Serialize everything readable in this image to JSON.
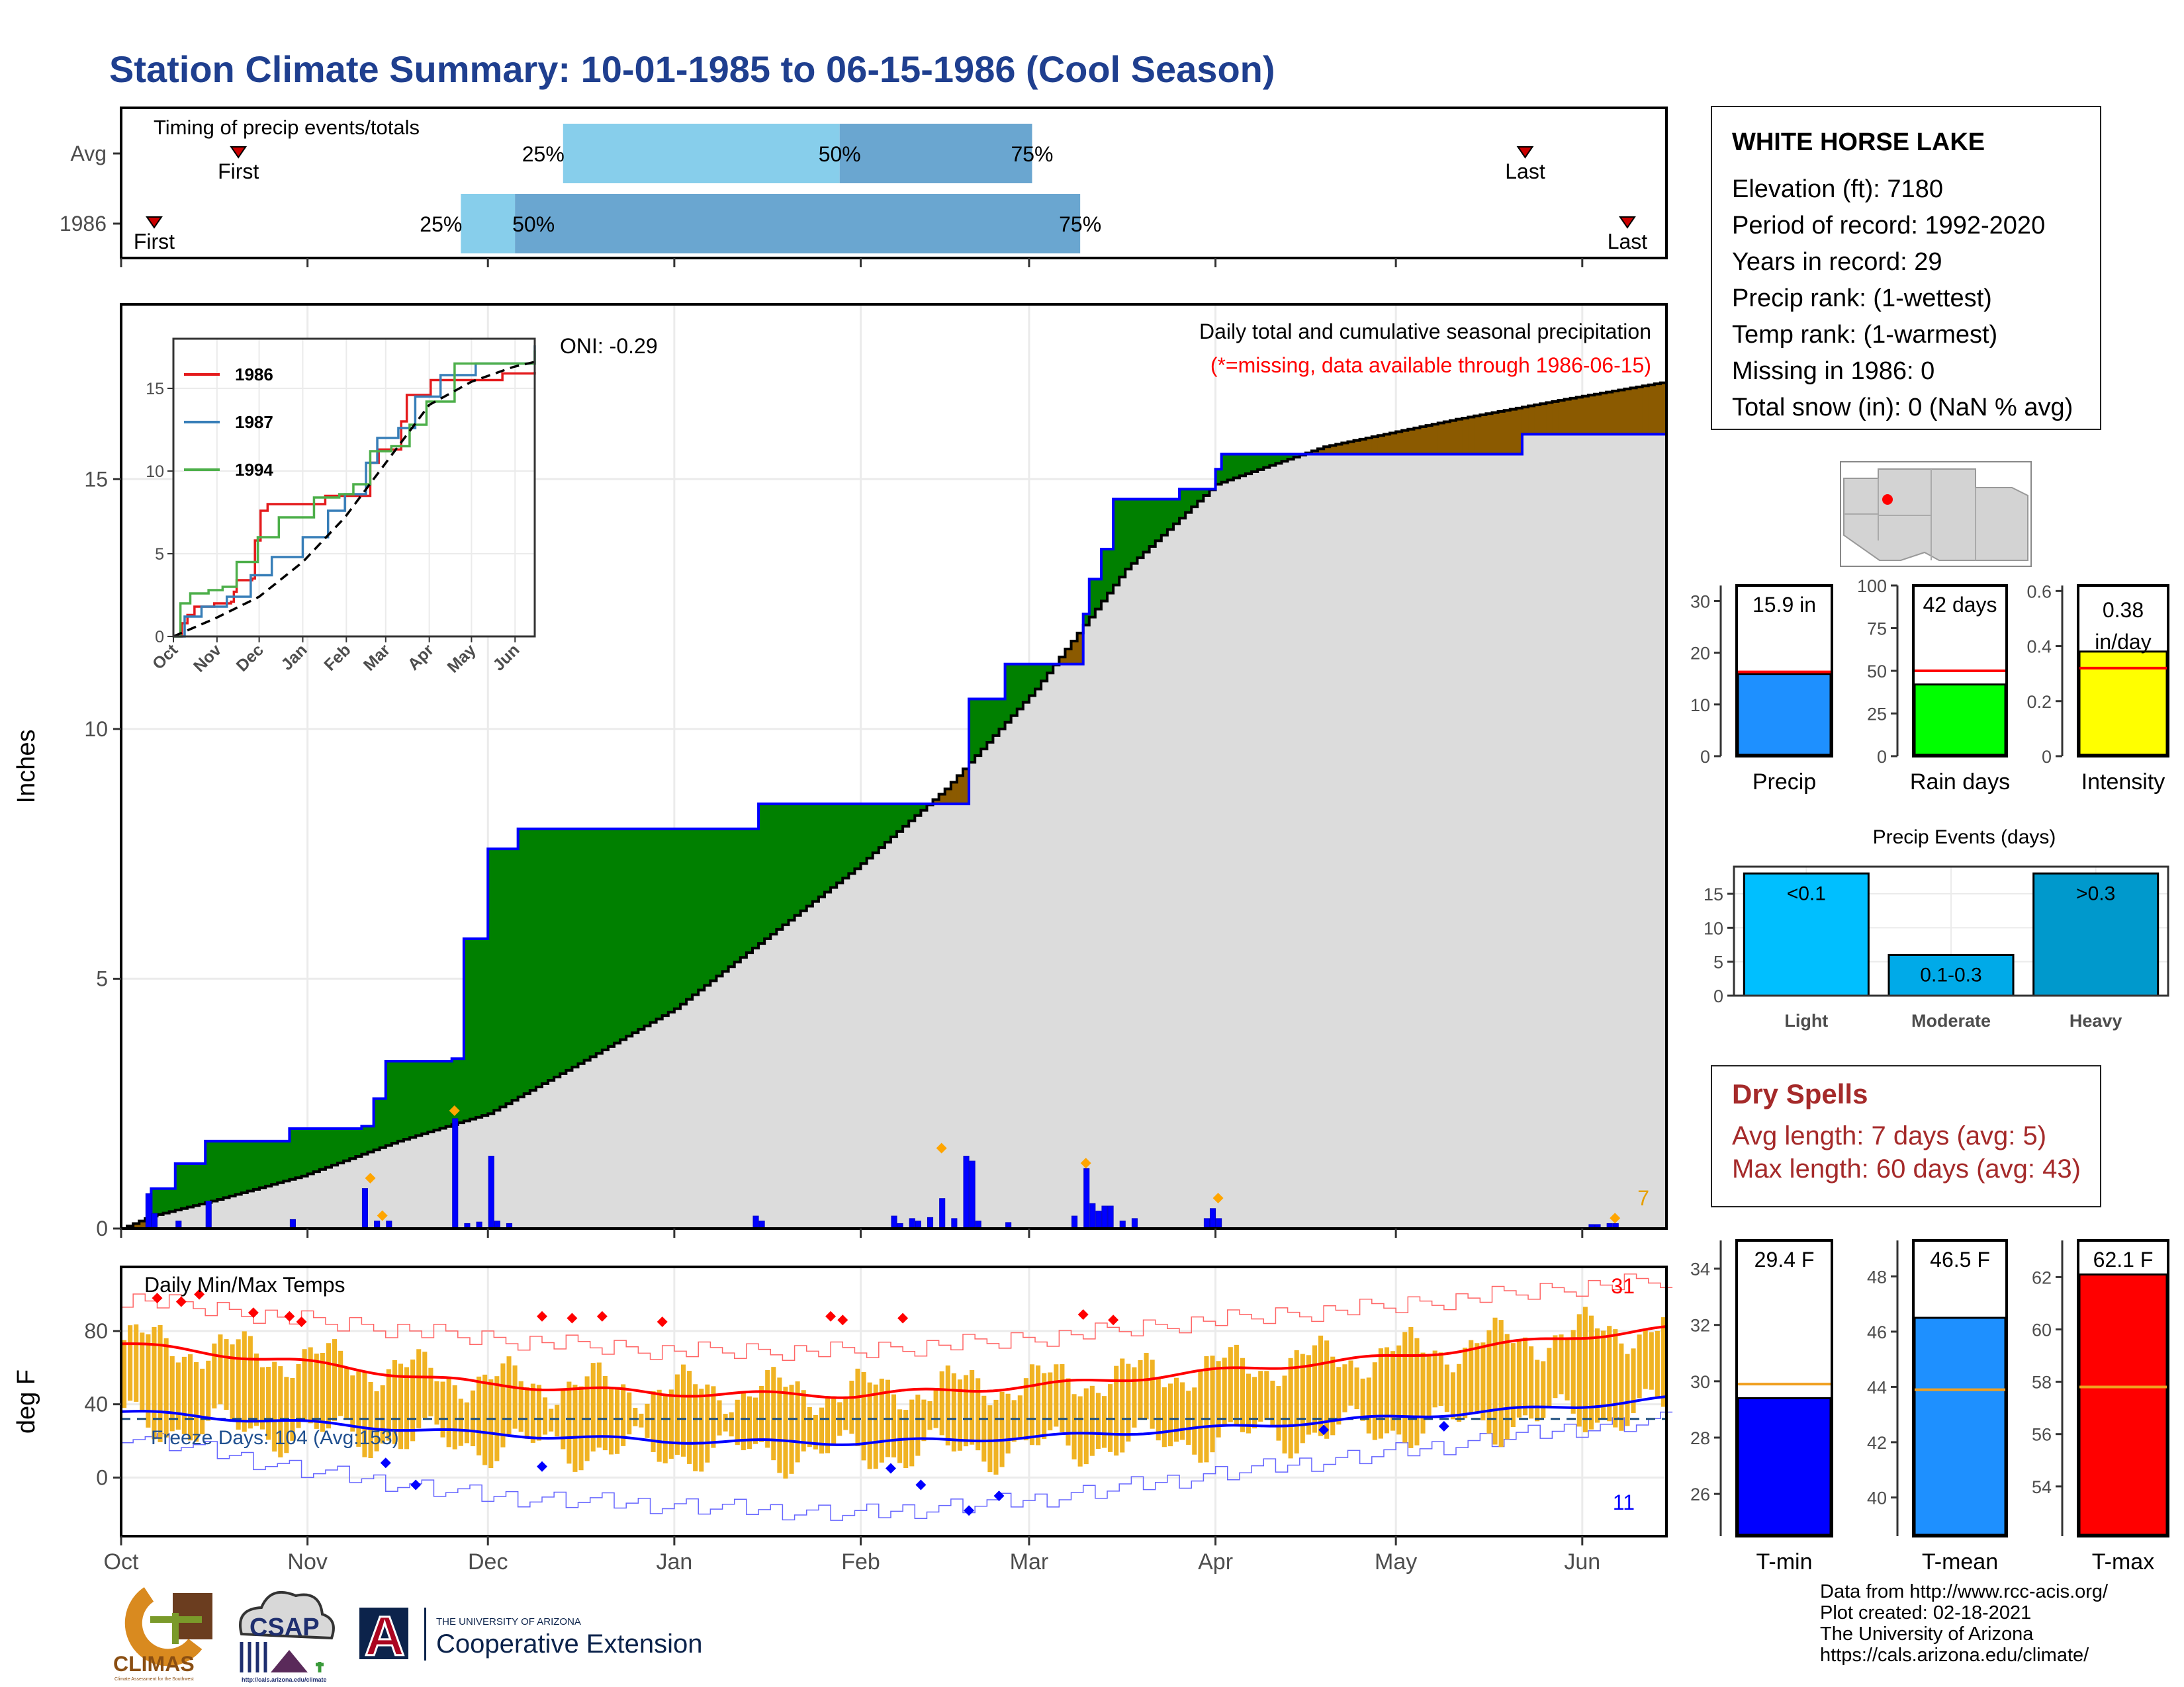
{
  "title": "Station Climate Summary: 10-01-1985 to 06-15-1986 (Cool Season)",
  "station": {
    "name": "WHITE HORSE LAKE",
    "lines": [
      "Elevation (ft): 7180",
      "Period of record: 1992-2020",
      "Years in record: 29",
      "Precip rank:  (1-wettest)",
      "Temp rank:  (1-warmest)",
      "Missing in 1986: 0",
      "Total snow (in): 0 (NaN % avg)"
    ]
  },
  "dry_spells": {
    "title": "Dry Spells",
    "avg_length": "Avg length: 7 days (avg: 5)",
    "max_length": "Max length: 60 days (avg: 43)"
  },
  "footer": {
    "lines": [
      "Data from http://www.rcc-acis.org/",
      "Plot created: 02-18-2021",
      "The University of Arizona",
      "https://cals.arizona.edu/climate/"
    ]
  },
  "logos": {
    "climas": "CLIMAS",
    "climas_sub": "Climate Assessment for the Southwest",
    "csap": "CSAP",
    "csap_url": "http://cals.arizona.edu/climate",
    "ua_letter": "A",
    "ua_small": "THE UNIVERSITY OF ARIZONA",
    "ua_ext": "Cooperative Extension"
  },
  "chart_data": [
    {
      "id": "timing",
      "type": "bar",
      "title": "Timing of precip events/totals",
      "rows": [
        {
          "label": "Avg",
          "p25": "Dec 13",
          "p50": "Jan 28",
          "p75": "Mar 1",
          "first": "Oct 20",
          "last": "May 22"
        },
        {
          "label": "1986",
          "p25": "Nov 26",
          "p50": "Dec 5",
          "p75": "Mar 9",
          "first": "Oct 6",
          "last": "Jun 8"
        }
      ],
      "markers": {
        "first": "First",
        "last": "Last"
      },
      "pct_labels": [
        "25%",
        "50%",
        "75%"
      ]
    },
    {
      "id": "precip",
      "type": "area",
      "title": "Daily total and cumulative seasonal precipitation",
      "subtitle": "(*=missing, data available through 1986-06-15)",
      "ylabel": "Inches",
      "ylim": [
        0,
        18.5
      ],
      "yticks": [
        0,
        5,
        10,
        15
      ],
      "xticks": [
        "Oct",
        "Nov",
        "Dec",
        "Jan",
        "Feb",
        "Mar",
        "Apr",
        "May",
        "Jun"
      ],
      "oni": "ONI: -0.29",
      "corner_value": "7",
      "actual_cumulative": [
        [
          0,
          0
        ],
        [
          5,
          0.8
        ],
        [
          9,
          1.3
        ],
        [
          14,
          1.75
        ],
        [
          28,
          2.0
        ],
        [
          40,
          2.05
        ],
        [
          42,
          2.6
        ],
        [
          44,
          3.35
        ],
        [
          55,
          3.4
        ],
        [
          57,
          5.8
        ],
        [
          61,
          7.6
        ],
        [
          66,
          8.0
        ],
        [
          105,
          8.0
        ],
        [
          106,
          8.5
        ],
        [
          118,
          8.5
        ],
        [
          129,
          8.5
        ],
        [
          141,
          10.6
        ],
        [
          147,
          11.3
        ],
        [
          158,
          11.3
        ],
        [
          160,
          12.3
        ],
        [
          161,
          13.0
        ],
        [
          163,
          13.6
        ],
        [
          165,
          14.6
        ],
        [
          176,
          14.8
        ],
        [
          182,
          15.2
        ],
        [
          183,
          15.5
        ],
        [
          229,
          15.5
        ],
        [
          233,
          15.9
        ],
        [
          257,
          15.9
        ]
      ],
      "avg_cumulative": [
        [
          0,
          0
        ],
        [
          5,
          0.25
        ],
        [
          15,
          0.55
        ],
        [
          30,
          1.05
        ],
        [
          46,
          1.75
        ],
        [
          61,
          2.3
        ],
        [
          76,
          3.3
        ],
        [
          92,
          4.4
        ],
        [
          107,
          5.8
        ],
        [
          122,
          7.2
        ],
        [
          137,
          8.8
        ],
        [
          152,
          10.8
        ],
        [
          167,
          13.2
        ],
        [
          182,
          14.9
        ],
        [
          200,
          15.65
        ],
        [
          222,
          16.2
        ],
        [
          240,
          16.6
        ],
        [
          257,
          16.95
        ]
      ],
      "daily": [
        [
          4,
          0.7
        ],
        [
          5,
          0.3
        ],
        [
          9,
          0.15
        ],
        [
          14,
          0.55
        ],
        [
          28,
          0.18
        ],
        [
          40,
          0.8
        ],
        [
          42,
          0.15
        ],
        [
          44,
          0.15
        ],
        [
          55,
          2.2
        ],
        [
          57,
          0.1
        ],
        [
          59,
          0.13
        ],
        [
          61,
          1.45
        ],
        [
          62,
          0.15
        ],
        [
          64,
          0.1
        ],
        [
          105,
          0.25
        ],
        [
          106,
          0.15
        ],
        [
          128,
          0.25
        ],
        [
          129,
          0.1
        ],
        [
          131,
          0.2
        ],
        [
          132,
          0.15
        ],
        [
          134,
          0.22
        ],
        [
          136,
          0.6
        ],
        [
          138,
          0.2
        ],
        [
          140,
          1.45
        ],
        [
          141,
          1.35
        ],
        [
          142,
          0.15
        ],
        [
          147,
          0.12
        ],
        [
          158,
          0.25
        ],
        [
          160,
          1.2
        ],
        [
          161,
          0.5
        ],
        [
          162,
          0.35
        ],
        [
          163,
          0.45
        ],
        [
          164,
          0.45
        ],
        [
          166,
          0.15
        ],
        [
          168,
          0.2
        ],
        [
          180,
          0.2
        ],
        [
          181,
          0.4
        ],
        [
          182,
          0.2
        ],
        [
          244,
          0.08
        ],
        [
          245,
          0.08
        ],
        [
          247,
          0.1
        ],
        [
          248,
          0.1
        ]
      ],
      "diamonds": [
        [
          41,
          0.85
        ],
        [
          43,
          0.1
        ],
        [
          55,
          2.2
        ],
        [
          136,
          1.45
        ],
        [
          160,
          1.15
        ],
        [
          182,
          0.45
        ],
        [
          248,
          0.05
        ]
      ]
    },
    {
      "id": "inset",
      "type": "line",
      "yticks": [
        0,
        5,
        10,
        15
      ],
      "xticks": [
        "Oct",
        "Nov",
        "Dec",
        "Jan",
        "Feb",
        "Mar",
        "Apr",
        "May",
        "Jun"
      ],
      "ylim": [
        0,
        18
      ],
      "series": [
        {
          "name": "1986",
          "color": "#e41a1c",
          "values": [
            [
              0,
              0
            ],
            [
              6,
              0.8
            ],
            [
              10,
              1.3
            ],
            [
              15,
              1.8
            ],
            [
              29,
              2.0
            ],
            [
              41,
              2.1
            ],
            [
              43,
              2.7
            ],
            [
              45,
              3.4
            ],
            [
              56,
              3.5
            ],
            [
              58,
              5.8
            ],
            [
              62,
              7.6
            ],
            [
              67,
              8.0
            ],
            [
              106,
              8.0
            ],
            [
              108,
              8.5
            ],
            [
              130,
              8.5
            ],
            [
              140,
              10.5
            ],
            [
              146,
              11.3
            ],
            [
              158,
              11.3
            ],
            [
              162,
              13.0
            ],
            [
              166,
              14.6
            ],
            [
              183,
              15.5
            ],
            [
              230,
              15.5
            ],
            [
              234,
              15.9
            ],
            [
              257,
              16.0
            ]
          ]
        },
        {
          "name": "1987",
          "color": "#377eb8",
          "values": [
            [
              0,
              0
            ],
            [
              8,
              1.2
            ],
            [
              20,
              1.8
            ],
            [
              38,
              2.4
            ],
            [
              55,
              3.7
            ],
            [
              70,
              4.8
            ],
            [
              92,
              6.0
            ],
            [
              110,
              7.6
            ],
            [
              122,
              8.6
            ],
            [
              137,
              10.5
            ],
            [
              145,
              12.0
            ],
            [
              160,
              12.6
            ],
            [
              172,
              14.5
            ],
            [
              190,
              15.8
            ],
            [
              215,
              16.5
            ],
            [
              257,
              17.6
            ]
          ]
        },
        {
          "name": "1994",
          "color": "#4daf4a",
          "values": [
            [
              0,
              0
            ],
            [
              5,
              2.0
            ],
            [
              12,
              2.6
            ],
            [
              25,
              2.8
            ],
            [
              35,
              3.0
            ],
            [
              45,
              4.5
            ],
            [
              60,
              6.0
            ],
            [
              75,
              7.2
            ],
            [
              100,
              8.4
            ],
            [
              118,
              8.6
            ],
            [
              128,
              9.2
            ],
            [
              140,
              11.2
            ],
            [
              155,
              11.5
            ],
            [
              168,
              12.8
            ],
            [
              180,
              14.2
            ],
            [
              200,
              16.5
            ],
            [
              257,
              17.3
            ]
          ]
        }
      ],
      "avg": [
        [
          0,
          0
        ],
        [
          30,
          1.1
        ],
        [
          61,
          2.4
        ],
        [
          92,
          4.5
        ],
        [
          122,
          7.2
        ],
        [
          152,
          10.6
        ],
        [
          182,
          14.0
        ],
        [
          212,
          15.4
        ],
        [
          242,
          16.3
        ],
        [
          257,
          16.6
        ]
      ]
    },
    {
      "id": "temps",
      "type": "bar",
      "title": "Daily Min/Max Temps",
      "ylabel": "deg F",
      "ylim": [
        -32,
        115
      ],
      "yticks": [
        0,
        40,
        80
      ],
      "xticks": [
        "Oct",
        "Nov",
        "Dec",
        "Jan",
        "Feb",
        "Mar",
        "Apr",
        "May",
        "Jun"
      ],
      "freeze_label": "Freeze Days: 104 (Avg:153)",
      "freeze_line": 32,
      "record_high_count": "31",
      "record_low_count": "11",
      "avg_max": [
        [
          0,
          73
        ],
        [
          30,
          63
        ],
        [
          60,
          51
        ],
        [
          90,
          46
        ],
        [
          122,
          45
        ],
        [
          152,
          50
        ],
        [
          182,
          58
        ],
        [
          212,
          66
        ],
        [
          242,
          77
        ],
        [
          257,
          81
        ]
      ],
      "avg_min": [
        [
          0,
          36
        ],
        [
          30,
          30
        ],
        [
          60,
          24
        ],
        [
          90,
          20
        ],
        [
          122,
          19
        ],
        [
          152,
          22
        ],
        [
          182,
          27
        ],
        [
          212,
          33
        ],
        [
          242,
          39
        ],
        [
          257,
          43
        ]
      ],
      "record_high": [
        [
          0,
          98
        ],
        [
          30,
          86
        ],
        [
          60,
          76
        ],
        [
          90,
          69
        ],
        [
          122,
          69
        ],
        [
          152,
          76
        ],
        [
          182,
          86
        ],
        [
          212,
          94
        ],
        [
          242,
          104
        ],
        [
          257,
          108
        ]
      ],
      "record_low": [
        [
          0,
          24
        ],
        [
          30,
          4
        ],
        [
          60,
          -10
        ],
        [
          90,
          -15
        ],
        [
          122,
          -20
        ],
        [
          152,
          -12
        ],
        [
          182,
          2
        ],
        [
          212,
          14
        ],
        [
          242,
          27
        ],
        [
          257,
          31
        ]
      ]
    },
    {
      "id": "stat-bars",
      "type": "bar",
      "panels": [
        {
          "name": "Precip",
          "value": 15.9,
          "label": "15.9 in",
          "avg": 16.3,
          "ylim": [
            0,
            33
          ],
          "yticks": [
            0,
            10,
            20,
            30
          ],
          "color": "#1e90ff"
        },
        {
          "name": "Rain days",
          "value": 42,
          "label": "42 days",
          "avg": 50,
          "ylim": [
            0,
            100
          ],
          "yticks": [
            0,
            25,
            50,
            75,
            100
          ],
          "color": "#00ff00"
        },
        {
          "name": "Intensity",
          "value": 0.38,
          "label": "0.38 in/day",
          "avg": 0.32,
          "ylim": [
            0,
            0.62
          ],
          "yticks": [
            0.0,
            0.2,
            0.4,
            0.6
          ],
          "color": "#ffff00"
        }
      ]
    },
    {
      "id": "precip-events",
      "type": "bar",
      "title": "Precip Events (days)",
      "categories": [
        "Light",
        "Moderate",
        "Heavy"
      ],
      "bar_labels": [
        "<0.1",
        "0.1-0.3",
        ">0.3"
      ],
      "values": [
        18,
        6,
        18
      ],
      "ylim": [
        0,
        19
      ],
      "yticks": [
        0,
        5,
        10,
        15
      ],
      "colors": [
        "#00bfff",
        "#00aae8",
        "#0099cc"
      ]
    },
    {
      "id": "temp-bars",
      "type": "bar",
      "panels": [
        {
          "name": "T-min",
          "value": 29.4,
          "label": "29.4 F",
          "avg": 29.9,
          "ylim": [
            24.5,
            35
          ],
          "yticks": [
            26,
            28,
            30,
            32,
            34
          ],
          "color": "#0000ff"
        },
        {
          "name": "T-mean",
          "value": 46.5,
          "label": "46.5 F",
          "avg": 43.9,
          "ylim": [
            38.6,
            49.3
          ],
          "yticks": [
            40,
            42,
            44,
            46,
            48
          ],
          "color": "#1e90ff"
        },
        {
          "name": "T-max",
          "value": 62.1,
          "label": "62.1 F",
          "avg": 57.8,
          "ylim": [
            52.1,
            63.4
          ],
          "yticks": [
            54,
            56,
            58,
            60,
            62
          ],
          "color": "#ff0000"
        }
      ]
    }
  ]
}
